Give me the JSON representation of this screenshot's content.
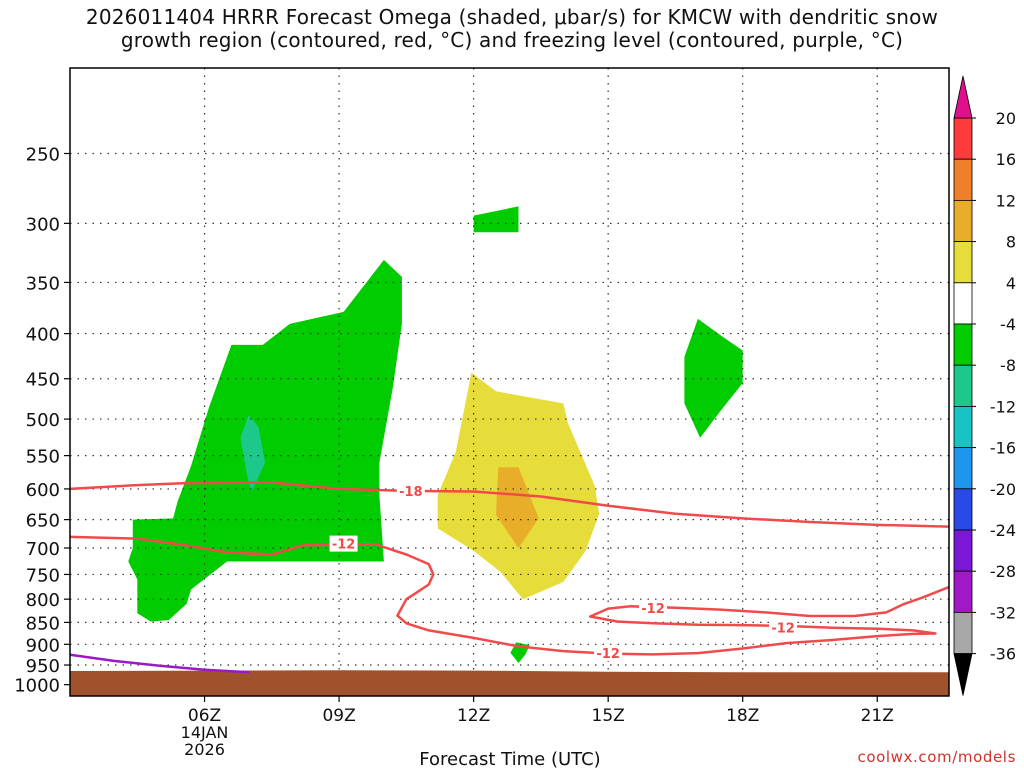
{
  "title_line1": "2026011404 HRRR Forecast Omega (shaded, μbar/s) for KMCW with dendritic snow",
  "title_line2": "growth region (contoured, red, °C) and freezing level (contoured, purple, °C)",
  "credit": "coolwx.com/models",
  "chart_data": {
    "type": "time-height cross section",
    "xlabel": "Forecast Time (UTC)",
    "x_range_hours_utc": [
      3.0,
      22.6
    ],
    "x_ticks": [
      {
        "hour": 6,
        "label": "06Z",
        "sub1": "14JAN",
        "sub2": "2026"
      },
      {
        "hour": 9,
        "label": "09Z"
      },
      {
        "hour": 12,
        "label": "12Z"
      },
      {
        "hour": 15,
        "label": "15Z"
      },
      {
        "hour": 18,
        "label": "18Z"
      },
      {
        "hour": 21,
        "label": "21Z"
      }
    ],
    "y_scale": "log pressure (hPa)",
    "y_range_hpa": [
      200,
      1030
    ],
    "y_ticks": [
      250,
      300,
      350,
      400,
      450,
      500,
      550,
      600,
      650,
      700,
      750,
      800,
      850,
      900,
      950,
      1000
    ],
    "grid": "dotted",
    "colorbar": {
      "label_values": [
        20,
        16,
        12,
        8,
        4,
        -4,
        -8,
        -12,
        -16,
        -20,
        -24,
        -28,
        -32,
        -36
      ],
      "bands": [
        {
          "from": 16,
          "to": 20,
          "color": "#ff3a3a"
        },
        {
          "from": 12,
          "to": 16,
          "color": "#f07f2a"
        },
        {
          "from": 8,
          "to": 12,
          "color": "#e8ae2a"
        },
        {
          "from": 4,
          "to": 8,
          "color": "#e6dc3a"
        },
        {
          "from": -4,
          "to": 4,
          "color": "#ffffff"
        },
        {
          "from": -8,
          "to": -4,
          "color": "#00cc00"
        },
        {
          "from": -12,
          "to": -8,
          "color": "#1cc98a"
        },
        {
          "from": -16,
          "to": -12,
          "color": "#18c3c3"
        },
        {
          "from": -20,
          "to": -16,
          "color": "#1f96ee"
        },
        {
          "from": -24,
          "to": -20,
          "color": "#2a4ae8"
        },
        {
          "from": -28,
          "to": -24,
          "color": "#7a18d6"
        },
        {
          "from": -32,
          "to": -28,
          "color": "#a018c8"
        },
        {
          "from": -36,
          "to": -32,
          "color": "#a8a8a8"
        }
      ],
      "above_max_color": "#e0108c",
      "below_min_color": "#000000"
    },
    "omega_regions": [
      {
        "name": "ascent-main",
        "color": "#00cc00",
        "points": [
          [
            4.4,
            650
          ],
          [
            5.3,
            648
          ],
          [
            5.4,
            620
          ],
          [
            5.7,
            565
          ],
          [
            6.1,
            485
          ],
          [
            6.6,
            412
          ],
          [
            7.3,
            412
          ],
          [
            7.9,
            390
          ],
          [
            9.1,
            378
          ],
          [
            10.0,
            330
          ],
          [
            10.4,
            345
          ],
          [
            10.4,
            390
          ],
          [
            10.2,
            460
          ],
          [
            9.9,
            560
          ],
          [
            9.9,
            610
          ],
          [
            10.0,
            725
          ],
          [
            6.5,
            725
          ],
          [
            5.7,
            780
          ],
          [
            5.6,
            810
          ],
          [
            5.2,
            845
          ],
          [
            4.8,
            848
          ],
          [
            4.5,
            830
          ],
          [
            4.5,
            760
          ],
          [
            4.3,
            725
          ],
          [
            4.4,
            700
          ]
        ]
      },
      {
        "name": "ascent-core",
        "color": "#1cc98a",
        "points": [
          [
            6.98,
            495
          ],
          [
            7.2,
            510
          ],
          [
            7.35,
            560
          ],
          [
            7.15,
            590
          ],
          [
            7.05,
            604
          ],
          [
            6.95,
            580
          ],
          [
            6.8,
            525
          ]
        ]
      },
      {
        "name": "ascent-upper",
        "color": "#00cc00",
        "points": [
          [
            12.0,
            294
          ],
          [
            13.0,
            287
          ],
          [
            13.0,
            307
          ],
          [
            12.0,
            307
          ]
        ]
      },
      {
        "name": "ascent-right",
        "color": "#00cc00",
        "points": [
          [
            17.0,
            385
          ],
          [
            17.6,
            405
          ],
          [
            18.0,
            418
          ],
          [
            18.0,
            455
          ],
          [
            17.5,
            490
          ],
          [
            17.05,
            525
          ],
          [
            16.7,
            480
          ],
          [
            16.7,
            425
          ]
        ]
      },
      {
        "name": "ascent-low",
        "color": "#00cc00",
        "points": [
          [
            12.95,
            895
          ],
          [
            13.25,
            902
          ],
          [
            13.15,
            925
          ],
          [
            13.0,
            945
          ],
          [
            12.82,
            920
          ]
        ]
      },
      {
        "name": "descent-main",
        "color": "#e6dc3a",
        "points": [
          [
            11.95,
            443
          ],
          [
            12.5,
            465
          ],
          [
            14.0,
            480
          ],
          [
            14.1,
            505
          ],
          [
            14.7,
            595
          ],
          [
            14.8,
            640
          ],
          [
            14.5,
            705
          ],
          [
            14.0,
            765
          ],
          [
            13.1,
            800
          ],
          [
            12.6,
            745
          ],
          [
            12.0,
            705
          ],
          [
            11.2,
            665
          ],
          [
            11.2,
            610
          ],
          [
            11.6,
            545
          ]
        ]
      },
      {
        "name": "descent-core",
        "color": "#e8ae2a",
        "points": [
          [
            12.55,
            567
          ],
          [
            13.0,
            567
          ],
          [
            13.45,
            648
          ],
          [
            13.0,
            700
          ],
          [
            12.5,
            642
          ]
        ]
      }
    ],
    "terrain": {
      "color": "#a0522d",
      "points": [
        [
          3.0,
          965
        ],
        [
          9.0,
          963
        ],
        [
          12.0,
          964
        ],
        [
          15.0,
          967
        ],
        [
          18.0,
          968
        ],
        [
          22.6,
          968
        ]
      ]
    },
    "contours": [
      {
        "name": "dgz-upper",
        "label": "-18",
        "color": "#f24a4a",
        "points": [
          [
            3.0,
            600
          ],
          [
            4.5,
            594
          ],
          [
            5.5,
            591
          ],
          [
            7.5,
            590
          ],
          [
            9.0,
            600
          ],
          [
            10.5,
            603
          ],
          [
            12.0,
            604
          ],
          [
            13.5,
            612
          ],
          [
            15.0,
            627
          ],
          [
            16.5,
            640
          ],
          [
            18.0,
            648
          ],
          [
            19.5,
            654
          ],
          [
            21.0,
            659
          ],
          [
            22.6,
            662
          ]
        ],
        "label_pos": [
          10.6,
          603
        ]
      },
      {
        "name": "dgz-lower",
        "label": "-12",
        "color": "#f24a4a",
        "points": [
          [
            3.0,
            680
          ],
          [
            4.5,
            683
          ],
          [
            5.5,
            694
          ],
          [
            6.5,
            708
          ],
          [
            7.5,
            712
          ],
          [
            8.2,
            695
          ],
          [
            9.0,
            694
          ],
          [
            9.8,
            693
          ],
          [
            10.5,
            712
          ],
          [
            11.0,
            730
          ],
          [
            11.1,
            750
          ],
          [
            11.0,
            770
          ],
          [
            10.7,
            788
          ],
          [
            10.5,
            800
          ],
          [
            10.3,
            835
          ],
          [
            10.5,
            852
          ],
          [
            11.0,
            868
          ],
          [
            12.0,
            885
          ],
          [
            13.0,
            905
          ],
          [
            14.0,
            916
          ],
          [
            15.0,
            922
          ],
          [
            16.0,
            924
          ],
          [
            17.0,
            921
          ],
          [
            18.0,
            910
          ],
          [
            19.0,
            897
          ],
          [
            20.0,
            890
          ],
          [
            21.0,
            881
          ],
          [
            21.8,
            876
          ],
          [
            22.3,
            875
          ],
          [
            21.8,
            868
          ],
          [
            21.0,
            864
          ],
          [
            20.0,
            862
          ],
          [
            19.0,
            858
          ],
          [
            18.0,
            856
          ],
          [
            17.0,
            855
          ],
          [
            16.0,
            852
          ],
          [
            15.2,
            848
          ],
          [
            14.6,
            837
          ],
          [
            15.0,
            820
          ],
          [
            15.5,
            815
          ],
          [
            16.5,
            818
          ],
          [
            17.5,
            822
          ],
          [
            18.5,
            828
          ],
          [
            19.5,
            836
          ],
          [
            20.5,
            836
          ],
          [
            21.2,
            828
          ],
          [
            21.6,
            810
          ],
          [
            22.0,
            797
          ],
          [
            22.6,
            775
          ]
        ],
        "label_pos_list": [
          [
            9.1,
            692
          ],
          [
            16.0,
            819
          ],
          [
            18.9,
            861
          ],
          [
            15.0,
            921
          ]
        ]
      },
      {
        "name": "freezing-level",
        "label": "",
        "color": "#9a18c8",
        "points": [
          [
            3.0,
            925
          ],
          [
            4.0,
            940
          ],
          [
            5.0,
            952
          ],
          [
            6.0,
            962
          ],
          [
            7.0,
            968
          ]
        ]
      }
    ]
  }
}
